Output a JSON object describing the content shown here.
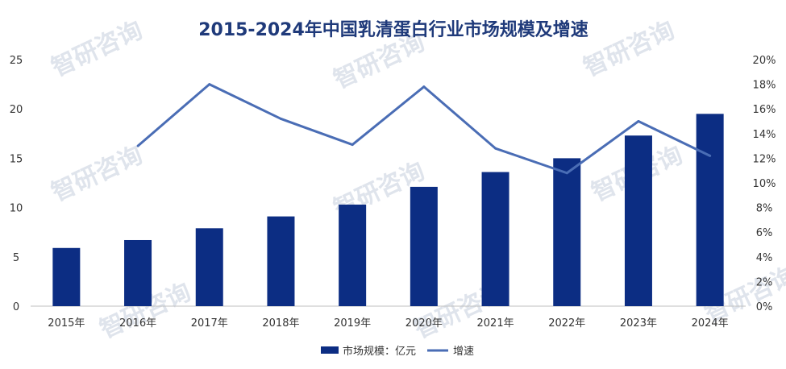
{
  "watermark": "智研咨询",
  "chart_data": {
    "type": "bar",
    "title": "2015-2024年中国乳清蛋白行业市场规模及增速",
    "categories": [
      "2015年",
      "2016年",
      "2017年",
      "2018年",
      "2019年",
      "2020年",
      "2021年",
      "2022年",
      "2023年",
      "2024年"
    ],
    "series": [
      {
        "name": "市场规模：亿元",
        "type": "bar",
        "axis": "left",
        "color": "#0c2d83",
        "values": [
          5.9,
          6.7,
          7.9,
          9.1,
          10.3,
          12.1,
          13.6,
          15.0,
          17.3,
          19.5
        ]
      },
      {
        "name": "增速",
        "type": "line",
        "axis": "right",
        "color": "#4a6db5",
        "values": [
          null,
          13.0,
          18.0,
          15.2,
          13.1,
          17.8,
          12.8,
          10.8,
          15.0,
          12.2
        ]
      }
    ],
    "y_left": {
      "min": 0,
      "max": 25,
      "ticks": [
        "0",
        "5",
        "10",
        "15",
        "20",
        "25"
      ]
    },
    "y_right": {
      "min": 0,
      "max": 20,
      "ticks": [
        "0%",
        "2%",
        "4%",
        "6%",
        "8%",
        "10%",
        "12%",
        "14%",
        "16%",
        "18%",
        "20%"
      ]
    },
    "grid": false,
    "legend_position": "bottom"
  }
}
